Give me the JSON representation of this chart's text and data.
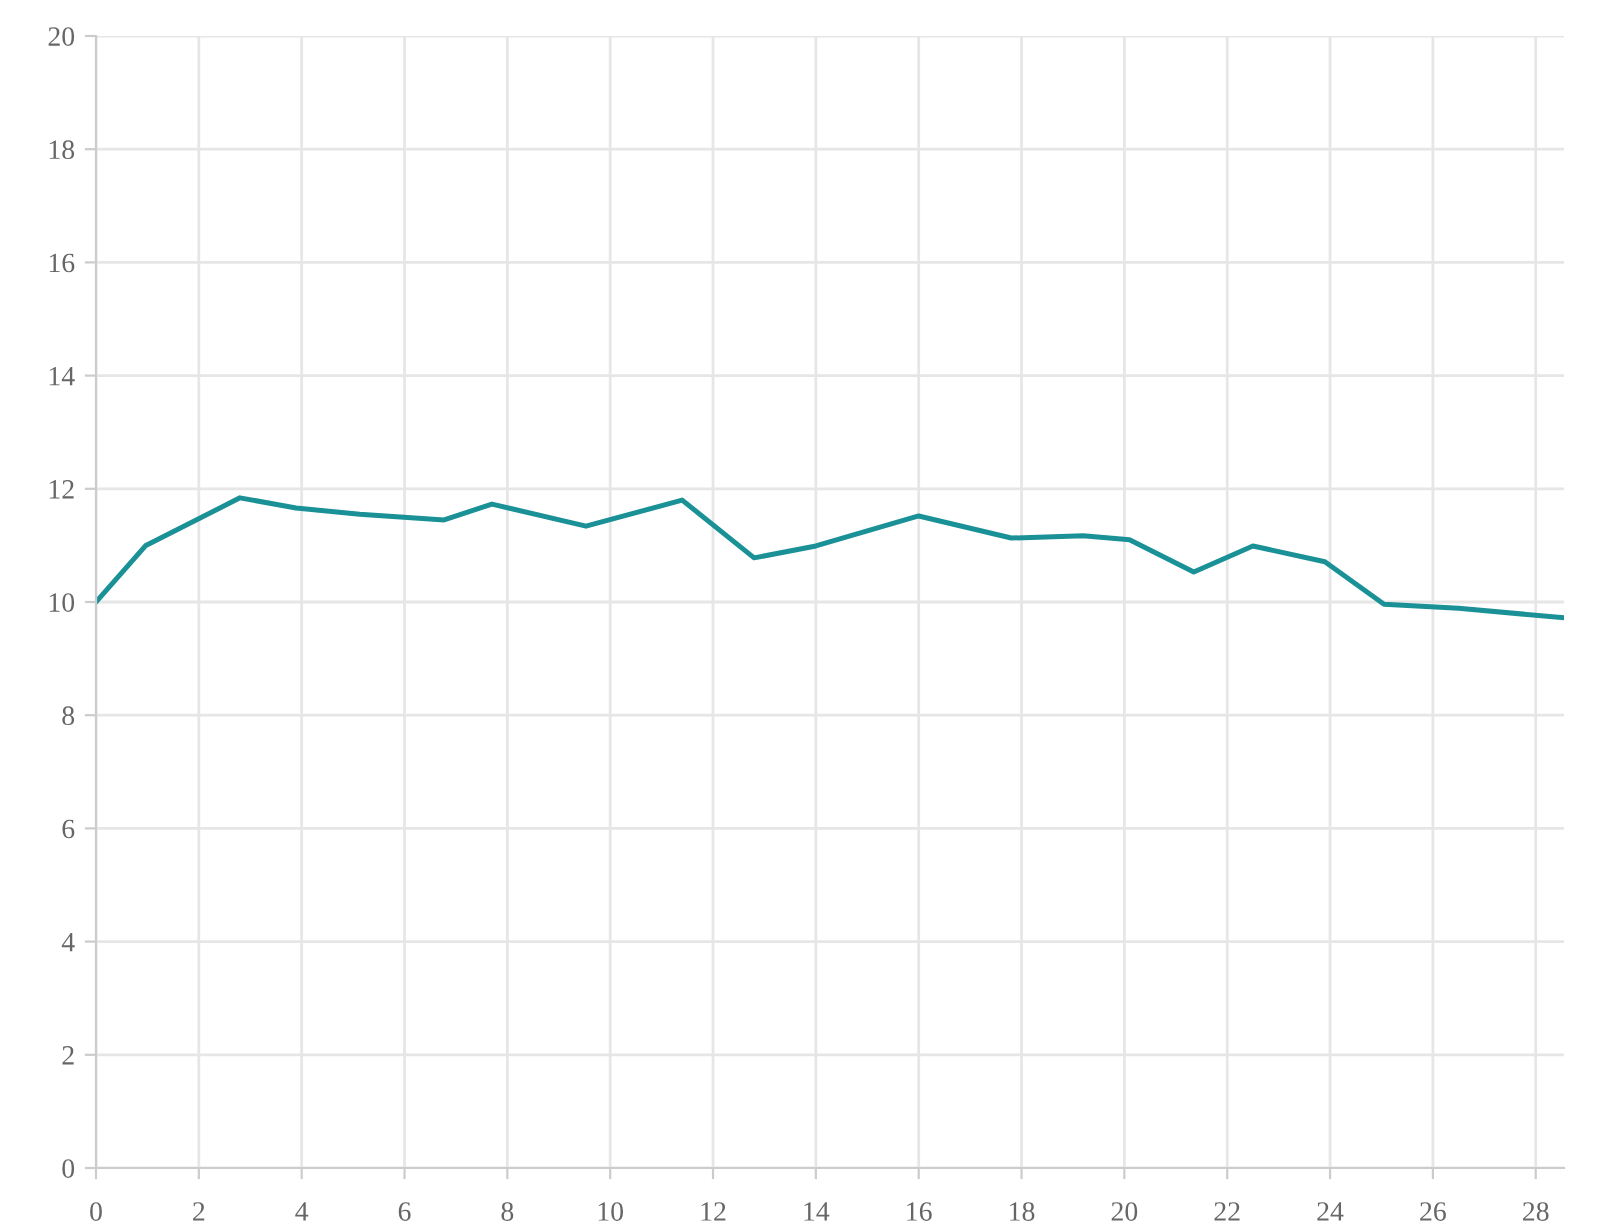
{
  "chart_data": {
    "type": "line",
    "x": [
      0,
      0.97,
      2.8,
      3.89,
      5.13,
      6.77,
      7.7,
      9.53,
      11.4,
      12.8,
      14.0,
      16.0,
      17.8,
      19.2,
      20.1,
      21.35,
      22.5,
      23.9,
      25.05,
      26.5,
      28.55
    ],
    "series": [
      {
        "color": "#1a9196",
        "values": [
          10.0,
          11.0,
          11.84,
          11.66,
          11.55,
          11.45,
          11.73,
          11.34,
          11.8,
          10.78,
          10.99,
          11.52,
          11.13,
          11.17,
          11.1,
          10.53,
          10.99,
          10.71,
          9.96,
          9.89,
          9.72
        ]
      }
    ],
    "xlim": [
      0,
      28.55
    ],
    "xticks": [
      0,
      2,
      4,
      6,
      8,
      10,
      12,
      14,
      16,
      18,
      20,
      22,
      24,
      26,
      28
    ],
    "ylim": [
      0,
      20
    ],
    "yticks": [
      0,
      2,
      4,
      6,
      8,
      10,
      12,
      14,
      16,
      18,
      20
    ],
    "grid": true,
    "marker": "none",
    "line_style": "solid"
  }
}
